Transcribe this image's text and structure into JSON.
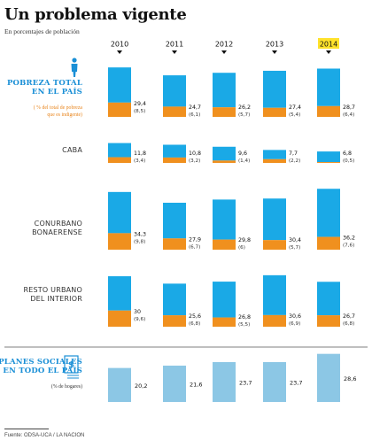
{
  "title": "Un problema vigente",
  "subtitle": "En porcentajes de población",
  "source": "Fuente: ODSA-UCA / LA NACION",
  "colors": {
    "total": "#1aa9e6",
    "indigent": "#f0901e",
    "planes": "#8cc7e5",
    "label_blue": "#1a8fd6",
    "label_orange": "#e8841b",
    "highlight": "#ffe22b"
  },
  "chart_data": {
    "type": "bar",
    "years": [
      "2010",
      "2011",
      "2012",
      "2013",
      "2014"
    ],
    "highlight_year": "2014",
    "groups": [
      {
        "label_lines": [
          "POBREZA TOTAL",
          "EN EL PAÍS"
        ],
        "note_lines": [
          "( % del total de pobreza",
          "que es indigente)"
        ],
        "style": "main",
        "icon": "person-icon",
        "totals": [
          29.4,
          24.7,
          26.2,
          27.4,
          28.7
        ],
        "totals_text": [
          "29,4",
          "24,7",
          "26,2",
          "27,4",
          "28,7"
        ],
        "indigent_text": [
          "(8,5)",
          "(6,1)",
          "(5,7)",
          "(5,4)",
          "(6,4)"
        ],
        "indigent_pct": [
          8.5,
          6.1,
          5.7,
          5.4,
          6.4
        ]
      },
      {
        "label_lines": [
          "CABA"
        ],
        "style": "region",
        "totals": [
          11.8,
          10.8,
          9.6,
          7.7,
          6.8
        ],
        "totals_text": [
          "11,8",
          "10,8",
          "9,6",
          "7,7",
          "6,8"
        ],
        "indigent_text": [
          "(3,4)",
          "(3,2)",
          "(1,4)",
          "(2,2)",
          "(0,5)"
        ],
        "indigent_pct": [
          3.4,
          3.2,
          1.4,
          2.2,
          0.5
        ]
      },
      {
        "label_lines": [
          "CONURBANO",
          "BONAERENSE"
        ],
        "style": "region",
        "totals": [
          34.3,
          27.9,
          29.8,
          30.4,
          36.2
        ],
        "totals_text": [
          "34,3",
          "27,9",
          "29,8",
          "30,4",
          "36,2"
        ],
        "indigent_text": [
          "(9,8)",
          "(6,7)",
          "(6)",
          "(5,7)",
          "(7,6)"
        ],
        "indigent_pct": [
          9.8,
          6.7,
          6.0,
          5.7,
          7.6
        ]
      },
      {
        "label_lines": [
          "RESTO URBANO",
          "DEL INTERIOR"
        ],
        "style": "region",
        "totals": [
          30,
          25.6,
          26.8,
          30.6,
          26.7
        ],
        "totals_text": [
          "30",
          "25,6",
          "26,8",
          "30,6",
          "26,7"
        ],
        "indigent_text": [
          "(9,6)",
          "(6,8)",
          "(5,5)",
          "(6,9)",
          "(6,8)"
        ],
        "indigent_pct": [
          9.6,
          6.8,
          5.5,
          6.9,
          6.8
        ]
      },
      {
        "label_lines": [
          "PLANES SOCIALES",
          "EN TODO EL PAÍS"
        ],
        "note_lines": [
          "(% de hogares)"
        ],
        "style": "planes",
        "icon": "document-dollar-icon",
        "totals": [
          20.2,
          21.6,
          23.7,
          23.7,
          28.6
        ],
        "totals_text": [
          "20,2",
          "21,6",
          "23,7",
          "23,7",
          "28,6"
        ]
      }
    ]
  }
}
